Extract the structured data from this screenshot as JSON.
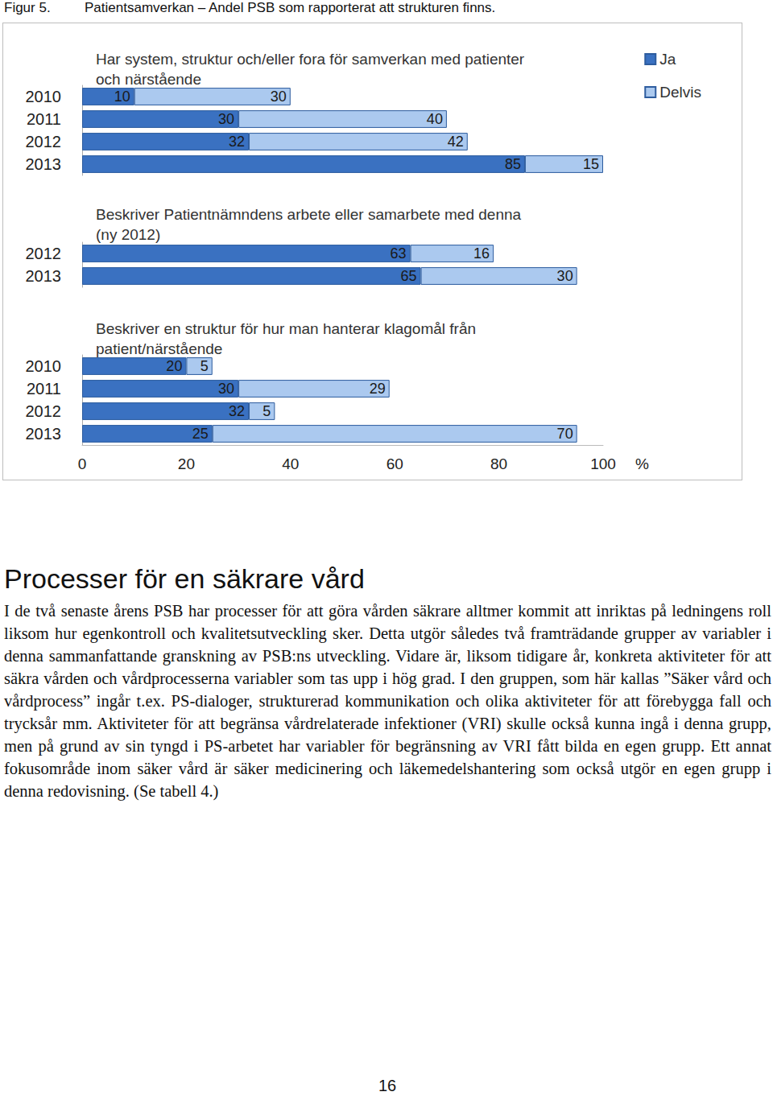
{
  "figure_label": "Figur 5.",
  "figure_caption": "Patientsamverkan – Andel PSB som rapporterat att strukturen finns.",
  "chart_data": [
    {
      "type": "bar",
      "title": "Har system, struktur och/eller fora för samverkan med patienter och närstående",
      "categories": [
        "2010",
        "2011",
        "2012",
        "2013"
      ],
      "series": [
        {
          "name": "Ja",
          "color": "#3a71c1",
          "values": [
            10,
            30,
            32,
            85
          ]
        },
        {
          "name": "Delvis",
          "color": "#abc9ef",
          "values": [
            30,
            40,
            42,
            15
          ]
        }
      ],
      "orientation": "horizontal",
      "stacked": true,
      "data_labels": true,
      "grid": false,
      "legend": "top-right",
      "tick_labels": "y",
      "xlim": [
        0,
        100
      ],
      "xticks": [
        0,
        20,
        40,
        60,
        80,
        100
      ]
    },
    {
      "type": "bar",
      "title": "Beskriver Patientnämndens arbete eller samarbete med denna (ny 2012)",
      "categories": [
        "2012",
        "2013"
      ],
      "series": [
        {
          "name": "Ja",
          "color": "#3a71c1",
          "values": [
            63,
            65
          ]
        },
        {
          "name": "Delvis",
          "color": "#abc9ef",
          "values": [
            16,
            30
          ]
        }
      ],
      "orientation": "horizontal",
      "stacked": true,
      "data_labels": true,
      "grid": false,
      "tick_labels": "y",
      "xlim": [
        0,
        100
      ],
      "xticks": [
        0,
        20,
        40,
        60,
        80,
        100
      ]
    },
    {
      "type": "bar",
      "title": "Beskriver en struktur för hur man hanterar klagomål från patient/närstående",
      "categories": [
        "2010",
        "2011",
        "2012",
        "2013"
      ],
      "series": [
        {
          "name": "Ja",
          "color": "#3a71c1",
          "values": [
            20,
            30,
            32,
            25
          ]
        },
        {
          "name": "Delvis",
          "color": "#abc9ef",
          "values": [
            5,
            29,
            5,
            70
          ]
        }
      ],
      "orientation": "horizontal",
      "stacked": true,
      "data_labels": true,
      "grid": false,
      "xlabel": "%",
      "xlim": [
        0,
        100
      ],
      "xticks": [
        0,
        20,
        40,
        60,
        80,
        100
      ]
    }
  ],
  "heading": "Processer för en säkrare vård",
  "paragraph": "I de två senaste årens PSB har processer för att göra vården säkrare alltmer kommit att inriktas på ledningens roll liksom hur egenkontroll och kvalitetsutveckling sker. Detta utgör således två framträdande grupper av variabler i denna sammanfattande granskning av PSB:ns utveckling. Vidare är, liksom tidigare år, konkreta aktiviteter för att säkra vården och vårdprocesserna variabler som tas upp i hög grad. I den gruppen, som här kallas ”Säker vård och vårdprocess” ingår t.ex. PS-dialoger, strukturerad kommunikation och olika aktiviteter för att förebygga fall och trycksår mm. Aktiviteter för att begränsa vårdrelaterade infektioner (VRI) skulle också kunna ingå i denna grupp, men på grund av sin tyngd i PS-arbetet har variabler för begränsning av VRI fått bilda en egen grupp. Ett annat fokusområde inom säker vård är säker medicinering och läkemedelshantering som också utgör en egen grupp i denna redovisning. (Se tabell 4.)",
  "page_number": "16"
}
